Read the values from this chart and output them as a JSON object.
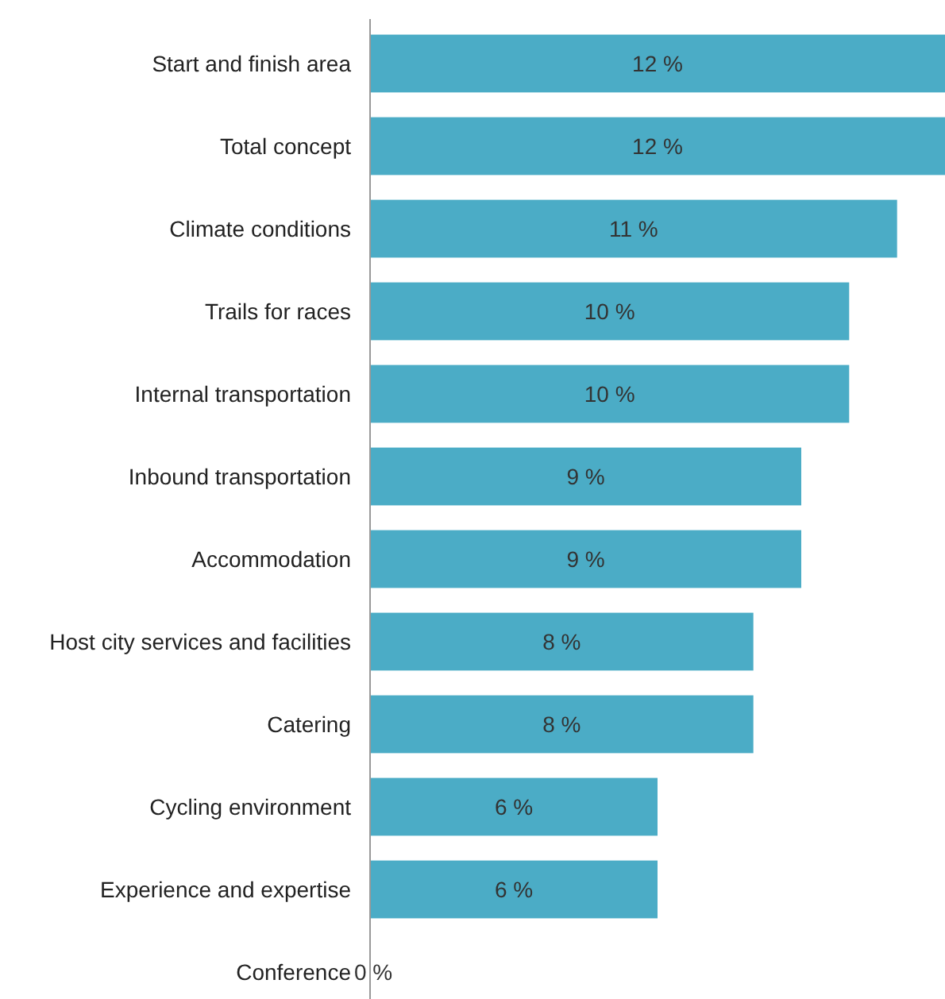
{
  "chart_data": {
    "type": "bar",
    "orientation": "horizontal",
    "categories": [
      "Start and finish area",
      "Total concept",
      "Climate conditions",
      "Trails for races",
      "Internal transportation",
      "Inbound transportation",
      "Accommodation",
      "Host city services and facilities",
      "Catering",
      "Cycling environment",
      "Experience and expertise",
      "Conference"
    ],
    "values": [
      12,
      12,
      11,
      10,
      10,
      9,
      9,
      8,
      8,
      6,
      6,
      0
    ],
    "value_labels": [
      "12 %",
      "12 %",
      "11 %",
      "10 %",
      "10 %",
      "9 %",
      "9 %",
      "8 %",
      "8 %",
      "6 %",
      "6 %",
      "0 %"
    ],
    "color": "#4bacc6",
    "xlim": [
      0,
      12
    ],
    "tick_labels": "y"
  }
}
